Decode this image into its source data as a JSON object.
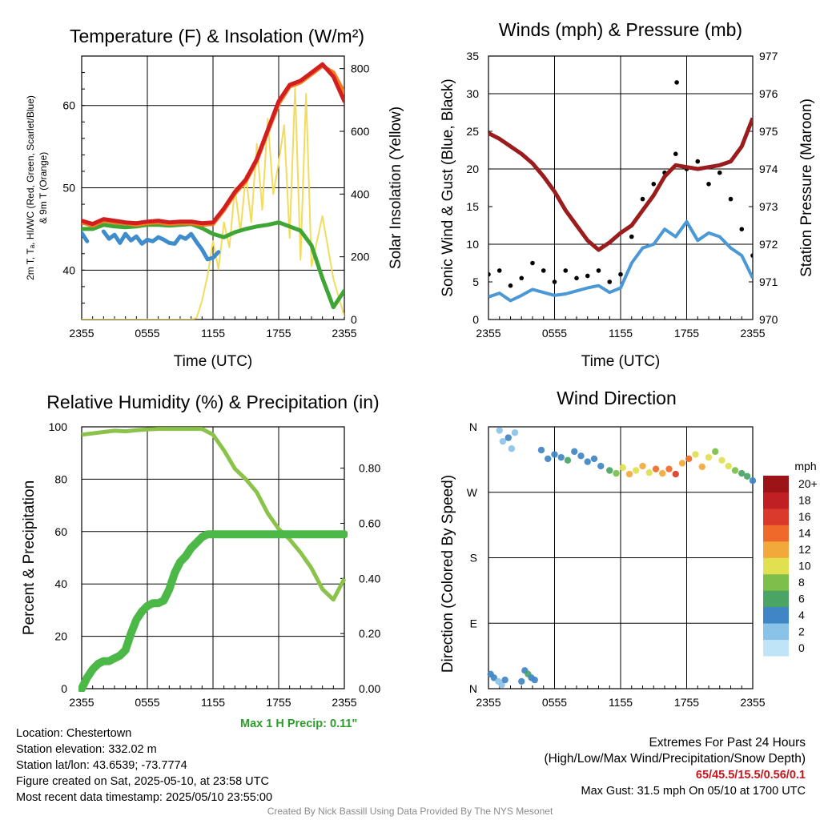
{
  "chart_data": [
    {
      "type": "line",
      "title": "Temperature (F) & Insolation (W/m²)",
      "xlabel": "Time (UTC)",
      "ylabel_lines": [
        "2m T, Tₐ, HI/WC (Red, Green, Scarlet/Blue)",
        "& 9m T (Orange)"
      ],
      "y2label": "Solar Insolation (Yellow)",
      "x_ticks": [
        "2355",
        "0555",
        "1155",
        "1755",
        "2355"
      ],
      "ylim": [
        34,
        66
      ],
      "y_ticks": [
        40,
        50,
        60
      ],
      "y2lim": [
        0,
        840
      ],
      "y2_ticks": [
        0,
        200,
        400,
        600,
        800
      ],
      "grid": true,
      "series": [
        {
          "name": "2m T",
          "color": "#d11f1f",
          "axis": "y",
          "x": [
            0,
            1,
            2,
            3,
            4,
            5,
            6,
            7,
            8,
            9,
            10,
            11,
            12,
            13,
            14,
            15,
            16,
            17,
            18,
            19,
            20,
            21,
            22,
            23,
            24
          ],
          "values": [
            46,
            45.6,
            46.2,
            46,
            45.8,
            45.7,
            45.9,
            46,
            45.8,
            45.9,
            45.9,
            45.7,
            45.8,
            47.5,
            49.5,
            51,
            53.5,
            57,
            60.5,
            62.5,
            63,
            64,
            65,
            63.5,
            60.5
          ]
        },
        {
          "name": "9m T",
          "color": "#f47a1f",
          "axis": "y",
          "x": [
            0,
            1,
            2,
            3,
            4,
            5,
            6,
            7,
            8,
            9,
            10,
            11,
            12,
            13,
            14,
            15,
            16,
            17,
            18,
            19,
            20,
            21,
            22,
            23,
            24
          ],
          "values": [
            45.8,
            45.4,
            46,
            45.8,
            45.7,
            45.5,
            45.7,
            45.8,
            45.6,
            45.7,
            45.7,
            45.5,
            45.6,
            47.3,
            49.3,
            50.8,
            53.3,
            56.8,
            60.2,
            62.3,
            62.8,
            63.8,
            64.8,
            64,
            61.5
          ]
        },
        {
          "name": "Tₐ",
          "color": "#3fa535",
          "axis": "y",
          "x": [
            0,
            1,
            2,
            3,
            4,
            5,
            6,
            7,
            8,
            9,
            10,
            11,
            12,
            13,
            14,
            15,
            16,
            17,
            18,
            19,
            20,
            21,
            22,
            23,
            24
          ],
          "values": [
            45,
            45,
            45.5,
            45.3,
            45.2,
            45.3,
            45.5,
            45.5,
            45.4,
            45.5,
            45.6,
            45.1,
            44.4,
            44,
            44.6,
            45,
            45.3,
            45.5,
            45.8,
            45.3,
            44.8,
            43,
            39,
            35.5,
            37.5
          ]
        },
        {
          "name": "WC",
          "color": "#3f8ccc",
          "axis": "y",
          "x": [
            0,
            0.5,
            1,
            1.5,
            2,
            2.5,
            3,
            3.5,
            4,
            4.5,
            5,
            5.5,
            6,
            6.5,
            7,
            7.5,
            8,
            8.5,
            9,
            9.5,
            10,
            10.5,
            11,
            11.5,
            12,
            12.5,
            13
          ],
          "values": [
            44.5,
            43.5,
            null,
            null,
            44.7,
            43.8,
            44.3,
            43.3,
            44.4,
            43.6,
            44.1,
            43.2,
            43.7,
            43.5,
            44,
            43.7,
            43.3,
            43.2,
            44.1,
            43.8,
            44.4,
            43.4,
            42.5,
            41.3,
            41.5,
            42.2,
            null
          ]
        },
        {
          "name": "Solar Insolation",
          "color": "#f2dc5d",
          "axis": "y2",
          "x": [
            0,
            1,
            2,
            3,
            4,
            5,
            6,
            7,
            8,
            9,
            10,
            10.5,
            11,
            11.5,
            12,
            12.5,
            13,
            13.5,
            14,
            14.5,
            15,
            15.5,
            16,
            16.5,
            17,
            17.5,
            18,
            18.5,
            19,
            19.5,
            20,
            20.5,
            21,
            22,
            23,
            24
          ],
          "values": [
            0,
            0,
            0,
            0,
            0,
            0,
            0,
            0,
            0,
            0,
            0,
            5,
            60,
            140,
            250,
            160,
            310,
            230,
            420,
            280,
            460,
            310,
            560,
            350,
            640,
            400,
            500,
            620,
            260,
            740,
            190,
            720,
            170,
            330,
            130,
            10
          ]
        }
      ]
    },
    {
      "type": "scatter",
      "title": "Winds (mph) & Pressure (mb)",
      "xlabel": "Time (UTC)",
      "ylabel": "Sonic Wind & Gust (Blue, Black)",
      "y2label": "Station Pressure (Maroon)",
      "x_ticks": [
        "2355",
        "0555",
        "1155",
        "1755",
        "2355"
      ],
      "ylim": [
        0,
        35
      ],
      "y_ticks": [
        0,
        5,
        10,
        15,
        20,
        25,
        30,
        35
      ],
      "y2lim": [
        970,
        977
      ],
      "y2_ticks": [
        970,
        971,
        972,
        973,
        974,
        975,
        976,
        977
      ],
      "grid": true,
      "series": [
        {
          "name": "Sonic Wind",
          "color": "#4a98d6",
          "style": "line",
          "axis": "y",
          "x": [
            0,
            1,
            2,
            3,
            4,
            5,
            6,
            7,
            8,
            9,
            10,
            11,
            12,
            13,
            14,
            15,
            16,
            17,
            18,
            19,
            20,
            21,
            22,
            23,
            24
          ],
          "values": [
            3,
            3.5,
            2.5,
            3.2,
            4,
            3.6,
            3.2,
            3.4,
            3.8,
            4.2,
            4.5,
            3.6,
            4.2,
            7.5,
            9.5,
            10,
            12,
            11,
            13,
            10.5,
            11.5,
            11,
            9.5,
            8.5,
            5.5
          ]
        },
        {
          "name": "Gust",
          "color": "#000000",
          "style": "markers",
          "axis": "y",
          "x": [
            0,
            1,
            2,
            3,
            4,
            5,
            6,
            7,
            8,
            9,
            10,
            11,
            12,
            13,
            14,
            15,
            16,
            17,
            18,
            19,
            20,
            21,
            22,
            23,
            24
          ],
          "values": [
            6,
            6.5,
            4.5,
            5.5,
            7.5,
            6.5,
            5,
            6.5,
            5.5,
            5.8,
            6.5,
            5,
            6,
            11,
            16,
            18,
            19.5,
            22,
            20,
            21,
            18,
            19.5,
            16,
            12,
            8.5
          ]
        },
        {
          "name": "Station Pressure",
          "color": "#9b1c1c",
          "style": "line",
          "axis": "y2",
          "x": [
            0,
            1,
            2,
            3,
            4,
            5,
            6,
            7,
            8,
            9,
            10,
            11,
            12,
            13,
            14,
            15,
            16,
            17,
            18,
            19,
            20,
            21,
            22,
            23,
            24
          ],
          "values": [
            974.95,
            974.8,
            974.6,
            974.4,
            974.15,
            973.8,
            973.4,
            972.9,
            972.5,
            972.1,
            971.85,
            972.05,
            972.3,
            972.5,
            972.9,
            973.3,
            973.8,
            974.1,
            974.05,
            974,
            974.05,
            974.1,
            974.2,
            974.6,
            975.35
          ]
        },
        {
          "name": "Max Gust",
          "color": "#000000",
          "style": "marker",
          "axis": "y",
          "x": [
            17.1
          ],
          "values": [
            31.5
          ]
        }
      ]
    },
    {
      "type": "line",
      "title": "Relative Humidity (%) & Precipitation (in)",
      "xlabel": "",
      "ylabel": "Percent & Precipitation",
      "x_ticks": [
        "2355",
        "0555",
        "1155",
        "1755",
        "2355"
      ],
      "ylim": [
        0,
        100
      ],
      "y_ticks": [
        0,
        20,
        40,
        60,
        80,
        100
      ],
      "y2lim": [
        0,
        0.95
      ],
      "y2_ticks": [
        "0.00",
        "0.20",
        "0.40",
        "0.60",
        "0.80"
      ],
      "grid": true,
      "series": [
        {
          "name": "Relative Humidity",
          "color": "#8bc34a",
          "axis": "y",
          "x": [
            0,
            1,
            2,
            3,
            4,
            5,
            6,
            7,
            8,
            9,
            10,
            11,
            12,
            13,
            14,
            15,
            16,
            17,
            18,
            19,
            20,
            21,
            22,
            23,
            24
          ],
          "values": [
            97,
            97.5,
            98,
            98.5,
            98.3,
            98.7,
            99,
            99.2,
            99.2,
            99.2,
            99.2,
            99.2,
            97,
            91,
            84,
            80,
            75,
            67,
            61,
            57,
            52,
            46,
            38,
            34,
            42
          ]
        },
        {
          "name": "Precipitation",
          "color": "#4cb848",
          "axis": "y2",
          "x": [
            0,
            0.5,
            1,
            1.5,
            2,
            2.5,
            3,
            3.5,
            4,
            4.5,
            5,
            5.5,
            6,
            6.5,
            7,
            7.5,
            8,
            8.5,
            9,
            9.5,
            10,
            10.5,
            11,
            11.5,
            12,
            24
          ],
          "values": [
            0,
            0.04,
            0.07,
            0.09,
            0.1,
            0.1,
            0.11,
            0.12,
            0.14,
            0.2,
            0.25,
            0.28,
            0.3,
            0.31,
            0.31,
            0.32,
            0.36,
            0.42,
            0.46,
            0.48,
            0.51,
            0.53,
            0.55,
            0.56,
            0.56,
            0.56
          ]
        }
      ]
    },
    {
      "type": "scatter",
      "title": "Wind Direction",
      "xlabel": "",
      "ylabel": "Direction (Colored By Speed)",
      "x_ticks": [
        "2355",
        "0555",
        "1155",
        "1755",
        "2355"
      ],
      "y_ticks": [
        "N",
        "E",
        "S",
        "W",
        "N"
      ],
      "ylim": [
        0,
        360
      ],
      "grid": true,
      "colorbar": {
        "title": "mph",
        "labels": [
          "0",
          "2",
          "4",
          "6",
          "8",
          "10",
          "12",
          "14",
          "16",
          "18",
          "20+"
        ],
        "colors": [
          "#bfe3f7",
          "#8ac3e8",
          "#3f86c6",
          "#4aa464",
          "#7dbf4a",
          "#e1e050",
          "#f2a93b",
          "#ef6a2a",
          "#d93a2b",
          "#c01f23",
          "#9c1418"
        ]
      },
      "points": [
        {
          "x": 0.2,
          "dir": 20,
          "mph": 3
        },
        {
          "x": 0.5,
          "dir": 15,
          "mph": 4
        },
        {
          "x": 0.9,
          "dir": 10,
          "mph": 2
        },
        {
          "x": 1.2,
          "dir": 5,
          "mph": 1
        },
        {
          "x": 1.5,
          "dir": 12,
          "mph": 3
        },
        {
          "x": 3.0,
          "dir": 10,
          "mph": 4
        },
        {
          "x": 3.3,
          "dir": 25,
          "mph": 3
        },
        {
          "x": 3.6,
          "dir": 20,
          "mph": 5
        },
        {
          "x": 3.9,
          "dir": 15,
          "mph": 4
        },
        {
          "x": 4.2,
          "dir": 12,
          "mph": 3
        },
        {
          "x": 1.0,
          "dir": 355,
          "mph": 2
        },
        {
          "x": 1.3,
          "dir": 340,
          "mph": 1
        },
        {
          "x": 1.8,
          "dir": 345,
          "mph": 3
        },
        {
          "x": 2.1,
          "dir": 330,
          "mph": 2
        },
        {
          "x": 2.4,
          "dir": 352,
          "mph": 1
        },
        {
          "x": 4.8,
          "dir": 328,
          "mph": 4
        },
        {
          "x": 5.4,
          "dir": 316,
          "mph": 3
        },
        {
          "x": 6.0,
          "dir": 322,
          "mph": 4
        },
        {
          "x": 6.6,
          "dir": 318,
          "mph": 3
        },
        {
          "x": 7.2,
          "dir": 314,
          "mph": 5
        },
        {
          "x": 7.8,
          "dir": 326,
          "mph": 4
        },
        {
          "x": 8.4,
          "dir": 320,
          "mph": 3
        },
        {
          "x": 9.0,
          "dir": 312,
          "mph": 4
        },
        {
          "x": 9.6,
          "dir": 316,
          "mph": 3
        },
        {
          "x": 10.2,
          "dir": 306,
          "mph": 4
        },
        {
          "x": 11.0,
          "dir": 300,
          "mph": 6
        },
        {
          "x": 11.6,
          "dir": 296,
          "mph": 7
        },
        {
          "x": 12.2,
          "dir": 304,
          "mph": 9
        },
        {
          "x": 12.8,
          "dir": 295,
          "mph": 11
        },
        {
          "x": 13.4,
          "dir": 300,
          "mph": 10
        },
        {
          "x": 14.0,
          "dir": 306,
          "mph": 12
        },
        {
          "x": 14.6,
          "dir": 297,
          "mph": 10
        },
        {
          "x": 15.2,
          "dir": 302,
          "mph": 13
        },
        {
          "x": 15.8,
          "dir": 296,
          "mph": 12
        },
        {
          "x": 16.4,
          "dir": 302,
          "mph": 14
        },
        {
          "x": 17.0,
          "dir": 295,
          "mph": 16
        },
        {
          "x": 17.6,
          "dir": 310,
          "mph": 12
        },
        {
          "x": 18.2,
          "dir": 316,
          "mph": 13
        },
        {
          "x": 18.8,
          "dir": 322,
          "mph": 10
        },
        {
          "x": 19.4,
          "dir": 305,
          "mph": 12
        },
        {
          "x": 20.0,
          "dir": 318,
          "mph": 9
        },
        {
          "x": 20.6,
          "dir": 326,
          "mph": 8
        },
        {
          "x": 21.2,
          "dir": 314,
          "mph": 10
        },
        {
          "x": 21.8,
          "dir": 306,
          "mph": 9
        },
        {
          "x": 22.4,
          "dir": 300,
          "mph": 7
        },
        {
          "x": 23.0,
          "dir": 296,
          "mph": 6
        },
        {
          "x": 23.5,
          "dir": 292,
          "mph": 5
        },
        {
          "x": 24,
          "dir": 286,
          "mph": 4
        }
      ]
    }
  ],
  "footer": {
    "max_precip": "Max 1 H Precip: 0.11\"",
    "location": "Location: Chestertown",
    "elevation": "Station elevation: 332.02 m",
    "latlon": "Station lat/lon: 43.6539; -73.7774",
    "created": "Figure created on Sat, 2025-05-10, at 23:58 UTC",
    "recent": "Most recent data timestamp: 2025/05/10 23:55:00",
    "extremes_title": "Extremes For Past 24 Hours",
    "extremes_sub": "(High/Low/Max Wind/Precipitation/Snow Depth)",
    "extremes_values": "65/45.5/15.5/0.56/0.1",
    "max_gust": "Max Gust: 31.5 mph On 05/10 at 1700 UTC",
    "credit": "Created By Nick Bassill Using Data Provided By The NYS Mesonet"
  }
}
